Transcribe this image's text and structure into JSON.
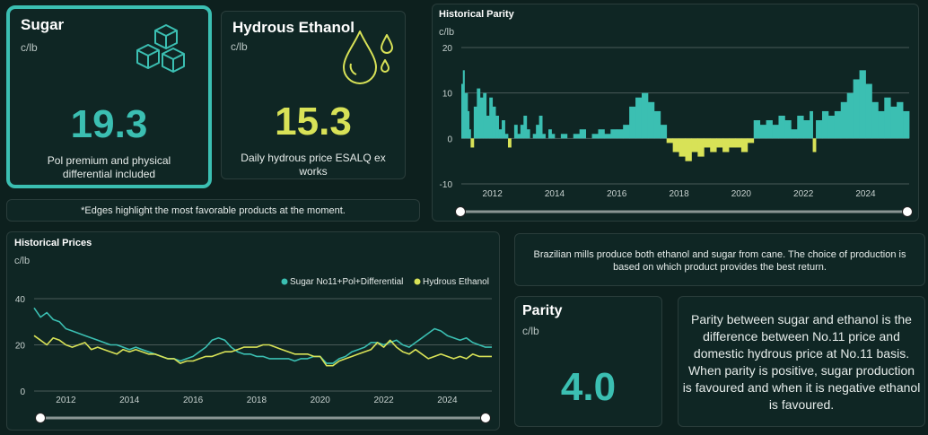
{
  "colors": {
    "teal": "#3bbfb2",
    "yellow": "#d8e257",
    "bg": "#0d201e",
    "card": "#0f2624",
    "grid": "#4a5a58"
  },
  "sugar": {
    "title": "Sugar",
    "unit": "c/lb",
    "value": "19.3",
    "description": "Pol premium and physical differential included",
    "icon": "sugar-cubes-icon"
  },
  "ethanol": {
    "title": "Hydrous Ethanol",
    "unit": "c/lb",
    "value": "15.3",
    "description": "Daily hydrous price ESALQ ex works",
    "icon": "drops-icon"
  },
  "edges_note": "*Edges highlight the most favorable products at the moment.",
  "info_text": "Brazilian mills produce both ethanol and sugar from cane. The choice of production is based on which product provides the best return.",
  "parity": {
    "title": "Parity",
    "unit": "c/lb",
    "value": "4.0"
  },
  "parity_explanation": "Parity between sugar and ethanol is the difference between No.11 price and domestic hydrous price at No.11 basis. When parity is positive, sugar production is favoured and when it is negative ethanol is favoured.",
  "chart_data": [
    {
      "type": "area",
      "title": "Historical Parity",
      "ylabel": "c/lb",
      "xlim": [
        2011.0,
        2025.4
      ],
      "ylim": [
        -10,
        20
      ],
      "yticks": [
        -10,
        0,
        10,
        20
      ],
      "xticks": [
        "2012",
        "2014",
        "2016",
        "2018",
        "2020",
        "2022",
        "2024"
      ],
      "positive_color": "#3bbfb2",
      "negative_color": "#d8e257",
      "x": [
        2011.0,
        2011.05,
        2011.1,
        2011.2,
        2011.25,
        2011.3,
        2011.4,
        2011.5,
        2011.6,
        2011.7,
        2011.8,
        2011.9,
        2012.0,
        2012.1,
        2012.2,
        2012.3,
        2012.4,
        2012.5,
        2012.6,
        2012.7,
        2012.8,
        2012.9,
        2013.0,
        2013.1,
        2013.2,
        2013.3,
        2013.4,
        2013.5,
        2013.6,
        2013.7,
        2013.8,
        2013.9,
        2014.0,
        2014.2,
        2014.4,
        2014.6,
        2014.8,
        2015.0,
        2015.2,
        2015.4,
        2015.6,
        2015.8,
        2016.0,
        2016.2,
        2016.4,
        2016.6,
        2016.8,
        2017.0,
        2017.2,
        2017.4,
        2017.6,
        2017.8,
        2018.0,
        2018.2,
        2018.4,
        2018.6,
        2018.8,
        2019.0,
        2019.2,
        2019.4,
        2019.6,
        2019.8,
        2020.0,
        2020.2,
        2020.4,
        2020.6,
        2020.8,
        2021.0,
        2021.2,
        2021.4,
        2021.6,
        2021.8,
        2022.0,
        2022.2,
        2022.3,
        2022.4,
        2022.6,
        2022.8,
        2023.0,
        2023.2,
        2023.4,
        2023.6,
        2023.8,
        2024.0,
        2024.2,
        2024.4,
        2024.6,
        2024.8,
        2025.0,
        2025.2,
        2025.4
      ],
      "y": [
        12,
        15,
        10,
        6,
        2,
        -2,
        7,
        11,
        9,
        10,
        5,
        9,
        7,
        5,
        2,
        4,
        1,
        -2,
        0,
        3,
        1,
        3,
        5,
        2,
        0,
        1,
        3,
        5,
        1,
        0,
        2,
        1,
        0,
        1,
        0,
        1,
        2,
        0,
        1,
        2,
        1,
        2,
        2,
        3,
        7,
        9,
        10,
        8,
        6,
        3,
        -1,
        -3,
        -4,
        -5,
        -3,
        -4,
        -2,
        -3,
        -2,
        -3,
        -2,
        -2,
        -3,
        -1,
        4,
        3,
        4,
        3,
        5,
        4,
        2,
        5,
        4,
        6,
        -3,
        4,
        6,
        5,
        6,
        8,
        10,
        13,
        15,
        12,
        8,
        6,
        9,
        7,
        8,
        6,
        4
      ]
    },
    {
      "type": "line",
      "title": "Historical Prices",
      "ylabel": "c/lb",
      "xlim": [
        2011.0,
        2025.4
      ],
      "ylim": [
        0,
        40
      ],
      "yticks": [
        0,
        20,
        40
      ],
      "xticks": [
        "2012",
        "2014",
        "2016",
        "2018",
        "2020",
        "2022",
        "2024"
      ],
      "x": [
        2011.0,
        2011.2,
        2011.4,
        2011.6,
        2011.8,
        2012.0,
        2012.2,
        2012.4,
        2012.6,
        2012.8,
        2013.0,
        2013.2,
        2013.4,
        2013.6,
        2013.8,
        2014.0,
        2014.2,
        2014.4,
        2014.6,
        2014.8,
        2015.0,
        2015.2,
        2015.4,
        2015.6,
        2015.8,
        2016.0,
        2016.2,
        2016.4,
        2016.6,
        2016.8,
        2017.0,
        2017.2,
        2017.4,
        2017.6,
        2017.8,
        2018.0,
        2018.2,
        2018.4,
        2018.6,
        2018.8,
        2019.0,
        2019.2,
        2019.4,
        2019.6,
        2019.8,
        2020.0,
        2020.2,
        2020.4,
        2020.6,
        2020.8,
        2021.0,
        2021.2,
        2021.4,
        2021.6,
        2021.8,
        2022.0,
        2022.2,
        2022.4,
        2022.6,
        2022.8,
        2023.0,
        2023.2,
        2023.4,
        2023.6,
        2023.8,
        2024.0,
        2024.2,
        2024.4,
        2024.6,
        2024.8,
        2025.0,
        2025.2,
        2025.4
      ],
      "series": [
        {
          "name": "Sugar No11+Pol+Differential",
          "color": "#3bbfb2",
          "values": [
            36,
            32,
            34,
            31,
            30,
            27,
            26,
            25,
            24,
            23,
            22,
            21,
            20,
            20,
            19,
            18,
            19,
            18,
            17,
            16,
            15,
            14,
            14,
            13,
            14,
            15,
            17,
            19,
            22,
            23,
            22,
            19,
            17,
            16,
            16,
            15,
            15,
            14,
            14,
            14,
            14,
            13,
            14,
            14,
            15,
            15,
            12,
            12,
            14,
            15,
            17,
            18,
            19,
            21,
            21,
            20,
            21,
            22,
            20,
            19,
            21,
            23,
            25,
            27,
            26,
            24,
            23,
            22,
            23,
            21,
            20,
            19,
            19
          ]
        },
        {
          "name": "Hydrous Ethanol",
          "color": "#d8e257",
          "values": [
            24,
            22,
            20,
            23,
            22,
            20,
            19,
            20,
            21,
            18,
            19,
            18,
            17,
            16,
            18,
            17,
            18,
            17,
            16,
            16,
            15,
            14,
            14,
            12,
            13,
            13,
            14,
            15,
            15,
            16,
            17,
            17,
            18,
            19,
            19,
            19,
            20,
            20,
            19,
            18,
            17,
            16,
            16,
            16,
            15,
            15,
            11,
            11,
            13,
            14,
            15,
            16,
            17,
            18,
            21,
            19,
            22,
            19,
            17,
            16,
            18,
            16,
            14,
            15,
            16,
            15,
            14,
            15,
            14,
            16,
            15,
            15,
            15
          ]
        }
      ],
      "legend": "top-right"
    }
  ]
}
